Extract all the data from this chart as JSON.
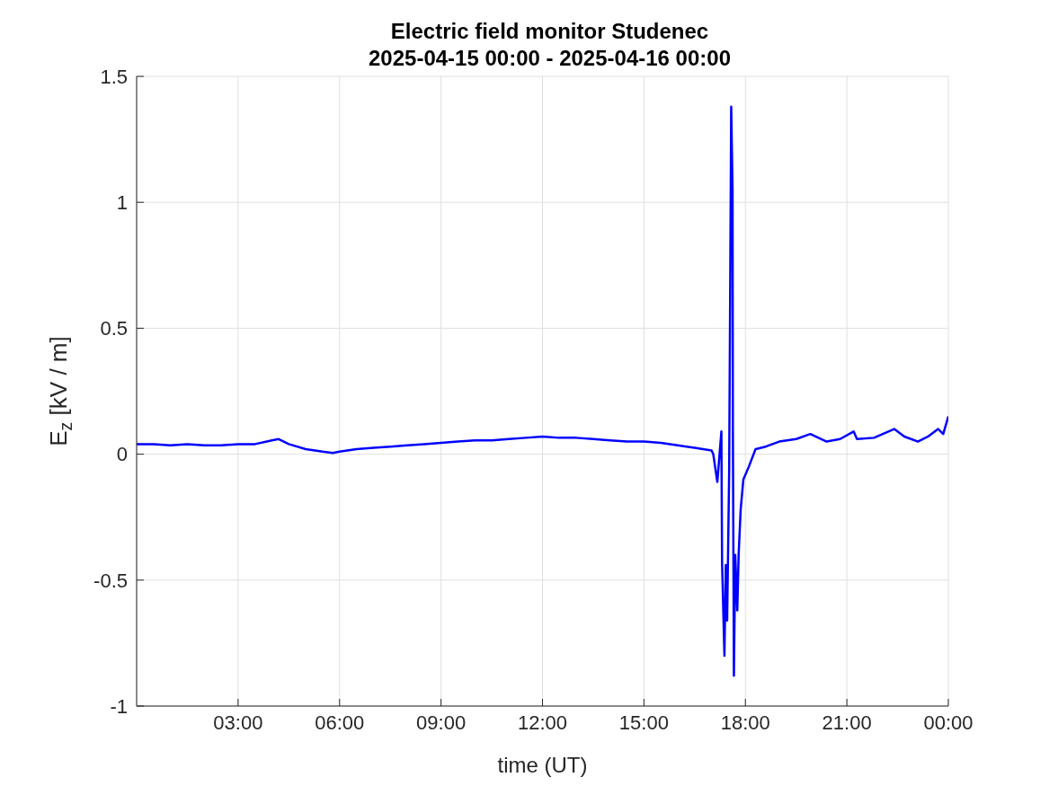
{
  "chart_data": {
    "type": "line",
    "title": "Electric field monitor Studenec",
    "subtitle": "2025-04-15 00:00 - 2025-04-16 00:00",
    "xlabel": "time (UT)",
    "ylabel": "E$_{z}$ [kV / m]",
    "x": [
      0,
      0.5,
      1,
      1.5,
      2,
      2.5,
      3,
      3.5,
      4,
      4.2,
      4.5,
      5,
      5.5,
      5.8,
      6,
      6.5,
      7,
      7.5,
      8,
      8.5,
      9,
      9.5,
      10,
      10.5,
      11,
      11.5,
      12,
      12.5,
      13,
      13.5,
      14,
      14.5,
      15,
      15.5,
      16,
      16.5,
      17,
      17.05,
      17.17,
      17.29,
      17.31,
      17.38,
      17.42,
      17.46,
      17.52,
      17.58,
      17.62,
      17.63,
      17.66,
      17.7,
      17.76,
      17.8,
      17.86,
      17.94,
      18.1,
      18.3,
      18.6,
      19,
      19.5,
      19.92,
      20.4,
      20.8,
      21.2,
      21.3,
      21.8,
      22.4,
      22.7,
      23.1,
      23.4,
      23.7,
      23.85,
      24
    ],
    "series": [
      {
        "color": "#0000ff",
        "values": [
          0.04,
          0.04,
          0.035,
          0.04,
          0.035,
          0.035,
          0.04,
          0.04,
          0.055,
          0.06,
          0.04,
          0.02,
          0.01,
          0.005,
          0.01,
          0.02,
          0.025,
          0.03,
          0.035,
          0.04,
          0.045,
          0.05,
          0.055,
          0.055,
          0.06,
          0.065,
          0.07,
          0.065,
          0.065,
          0.06,
          0.055,
          0.05,
          0.05,
          0.045,
          0.035,
          0.025,
          0.015,
          0.0,
          -0.11,
          0.09,
          -0.43,
          -0.8,
          -0.44,
          -0.66,
          -0.07,
          1.38,
          1.05,
          0.1,
          -0.88,
          -0.4,
          -0.62,
          -0.4,
          -0.22,
          -0.1,
          -0.05,
          0.02,
          0.03,
          0.05,
          0.06,
          0.08,
          0.05,
          0.06,
          0.09,
          0.06,
          0.065,
          0.1,
          0.07,
          0.05,
          0.07,
          0.1,
          0.08,
          0.15
        ]
      }
    ],
    "xlim": [
      0,
      24
    ],
    "xticks": [
      {
        "value": 3,
        "label": "03:00"
      },
      {
        "value": 6,
        "label": "06:00"
      },
      {
        "value": 9,
        "label": "09:00"
      },
      {
        "value": 12,
        "label": "12:00"
      },
      {
        "value": 15,
        "label": "15:00"
      },
      {
        "value": 18,
        "label": "18:00"
      },
      {
        "value": 21,
        "label": "21:00"
      },
      {
        "value": 24,
        "label": "00:00"
      }
    ],
    "ylim": [
      -1,
      1.5
    ],
    "yticks": [
      -1,
      -0.5,
      0,
      0.5,
      1,
      1.5
    ],
    "grid": true,
    "marker": "none",
    "line_style": "solid"
  }
}
